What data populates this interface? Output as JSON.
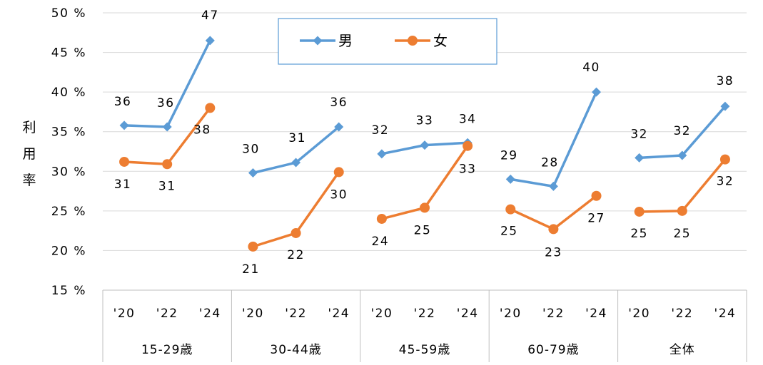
{
  "chart_data": {
    "type": "line",
    "title": "",
    "ylabel": "利用率",
    "ylim": [
      15,
      50
    ],
    "y_ticks": [
      "15 %",
      "20 %",
      "25 %",
      "30 %",
      "35 %",
      "40 %",
      "45 %",
      "50 %"
    ],
    "grid": true,
    "legend_position": "top-center",
    "groups": [
      {
        "label": "15-29歳",
        "years": [
          "'20",
          "'22",
          "'24"
        ]
      },
      {
        "label": "30-44歳",
        "years": [
          "'20",
          "'22",
          "'24"
        ]
      },
      {
        "label": "45-59歳",
        "years": [
          "'20",
          "'22",
          "'24"
        ]
      },
      {
        "label": "60-79歳",
        "years": [
          "'20",
          "'22",
          "'24"
        ]
      },
      {
        "label": "全体",
        "years": [
          "'20",
          "'22",
          "'24"
        ]
      }
    ],
    "series": [
      {
        "name": "男",
        "color": "#5B9BD5",
        "marker": "diamond",
        "values": [
          [
            35.8,
            35.6,
            46.5
          ],
          [
            29.8,
            31.1,
            35.6
          ],
          [
            32.2,
            33.3,
            33.6
          ],
          [
            29.0,
            28.1,
            40.0
          ],
          [
            31.7,
            32.0,
            38.2
          ]
        ],
        "labels": [
          [
            "36",
            "36",
            "47"
          ],
          [
            "30",
            "31",
            "36"
          ],
          [
            "32",
            "33",
            "34"
          ],
          [
            "29",
            "28",
            "40"
          ],
          [
            "32",
            "32",
            "38"
          ]
        ]
      },
      {
        "name": "女",
        "color": "#ED7D31",
        "marker": "circle",
        "values": [
          [
            31.2,
            30.9,
            38.0
          ],
          [
            20.5,
            22.2,
            29.9
          ],
          [
            24.0,
            25.4,
            33.2
          ],
          [
            25.2,
            22.7,
            26.9
          ],
          [
            24.9,
            25.0,
            31.5
          ]
        ],
        "labels": [
          [
            "31",
            "31",
            "38"
          ],
          [
            "21",
            "22",
            "30"
          ],
          [
            "24",
            "25",
            "33"
          ],
          [
            "25",
            "23",
            "27"
          ],
          [
            "25",
            "25",
            "32"
          ]
        ]
      }
    ]
  }
}
